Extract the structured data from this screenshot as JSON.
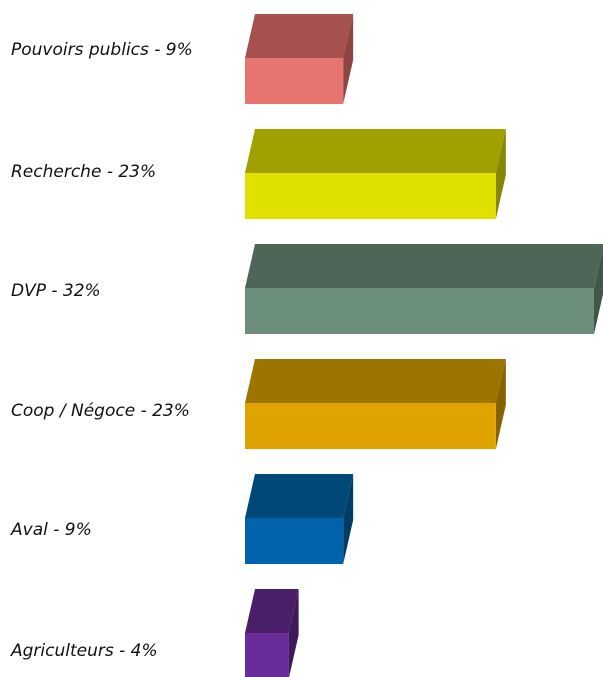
{
  "chart_data": {
    "type": "bar",
    "orientation": "horizontal",
    "style": "3d",
    "grid": false,
    "legend": "none",
    "title": "",
    "xlabel": "",
    "ylabel": "",
    "xlim": [
      0,
      32
    ],
    "categories": [
      "Pouvoirs publics - 9%",
      "Recherche - 23%",
      "DVP - 32%",
      "Coop / Négoce - 23%",
      "Aval - 9%",
      "Agriculteurs - 4%"
    ],
    "values": [
      9,
      23,
      32,
      23,
      9,
      4
    ],
    "colors": [
      {
        "front": "#e7756f",
        "top": "#a4514f",
        "side": "#8d4443"
      },
      {
        "front": "#dfe000",
        "top": "#a0a000",
        "side": "#868600"
      },
      {
        "front": "#6c8f7b",
        "top": "#4e6657",
        "side": "#415649"
      },
      {
        "front": "#dfa300",
        "top": "#9e7400",
        "side": "#876300"
      },
      {
        "front": "#0063ab",
        "top": "#004878",
        "side": "#003d66"
      },
      {
        "front": "#6a2c98",
        "top": "#4a1f6a",
        "side": "#3e1a59"
      }
    ]
  }
}
